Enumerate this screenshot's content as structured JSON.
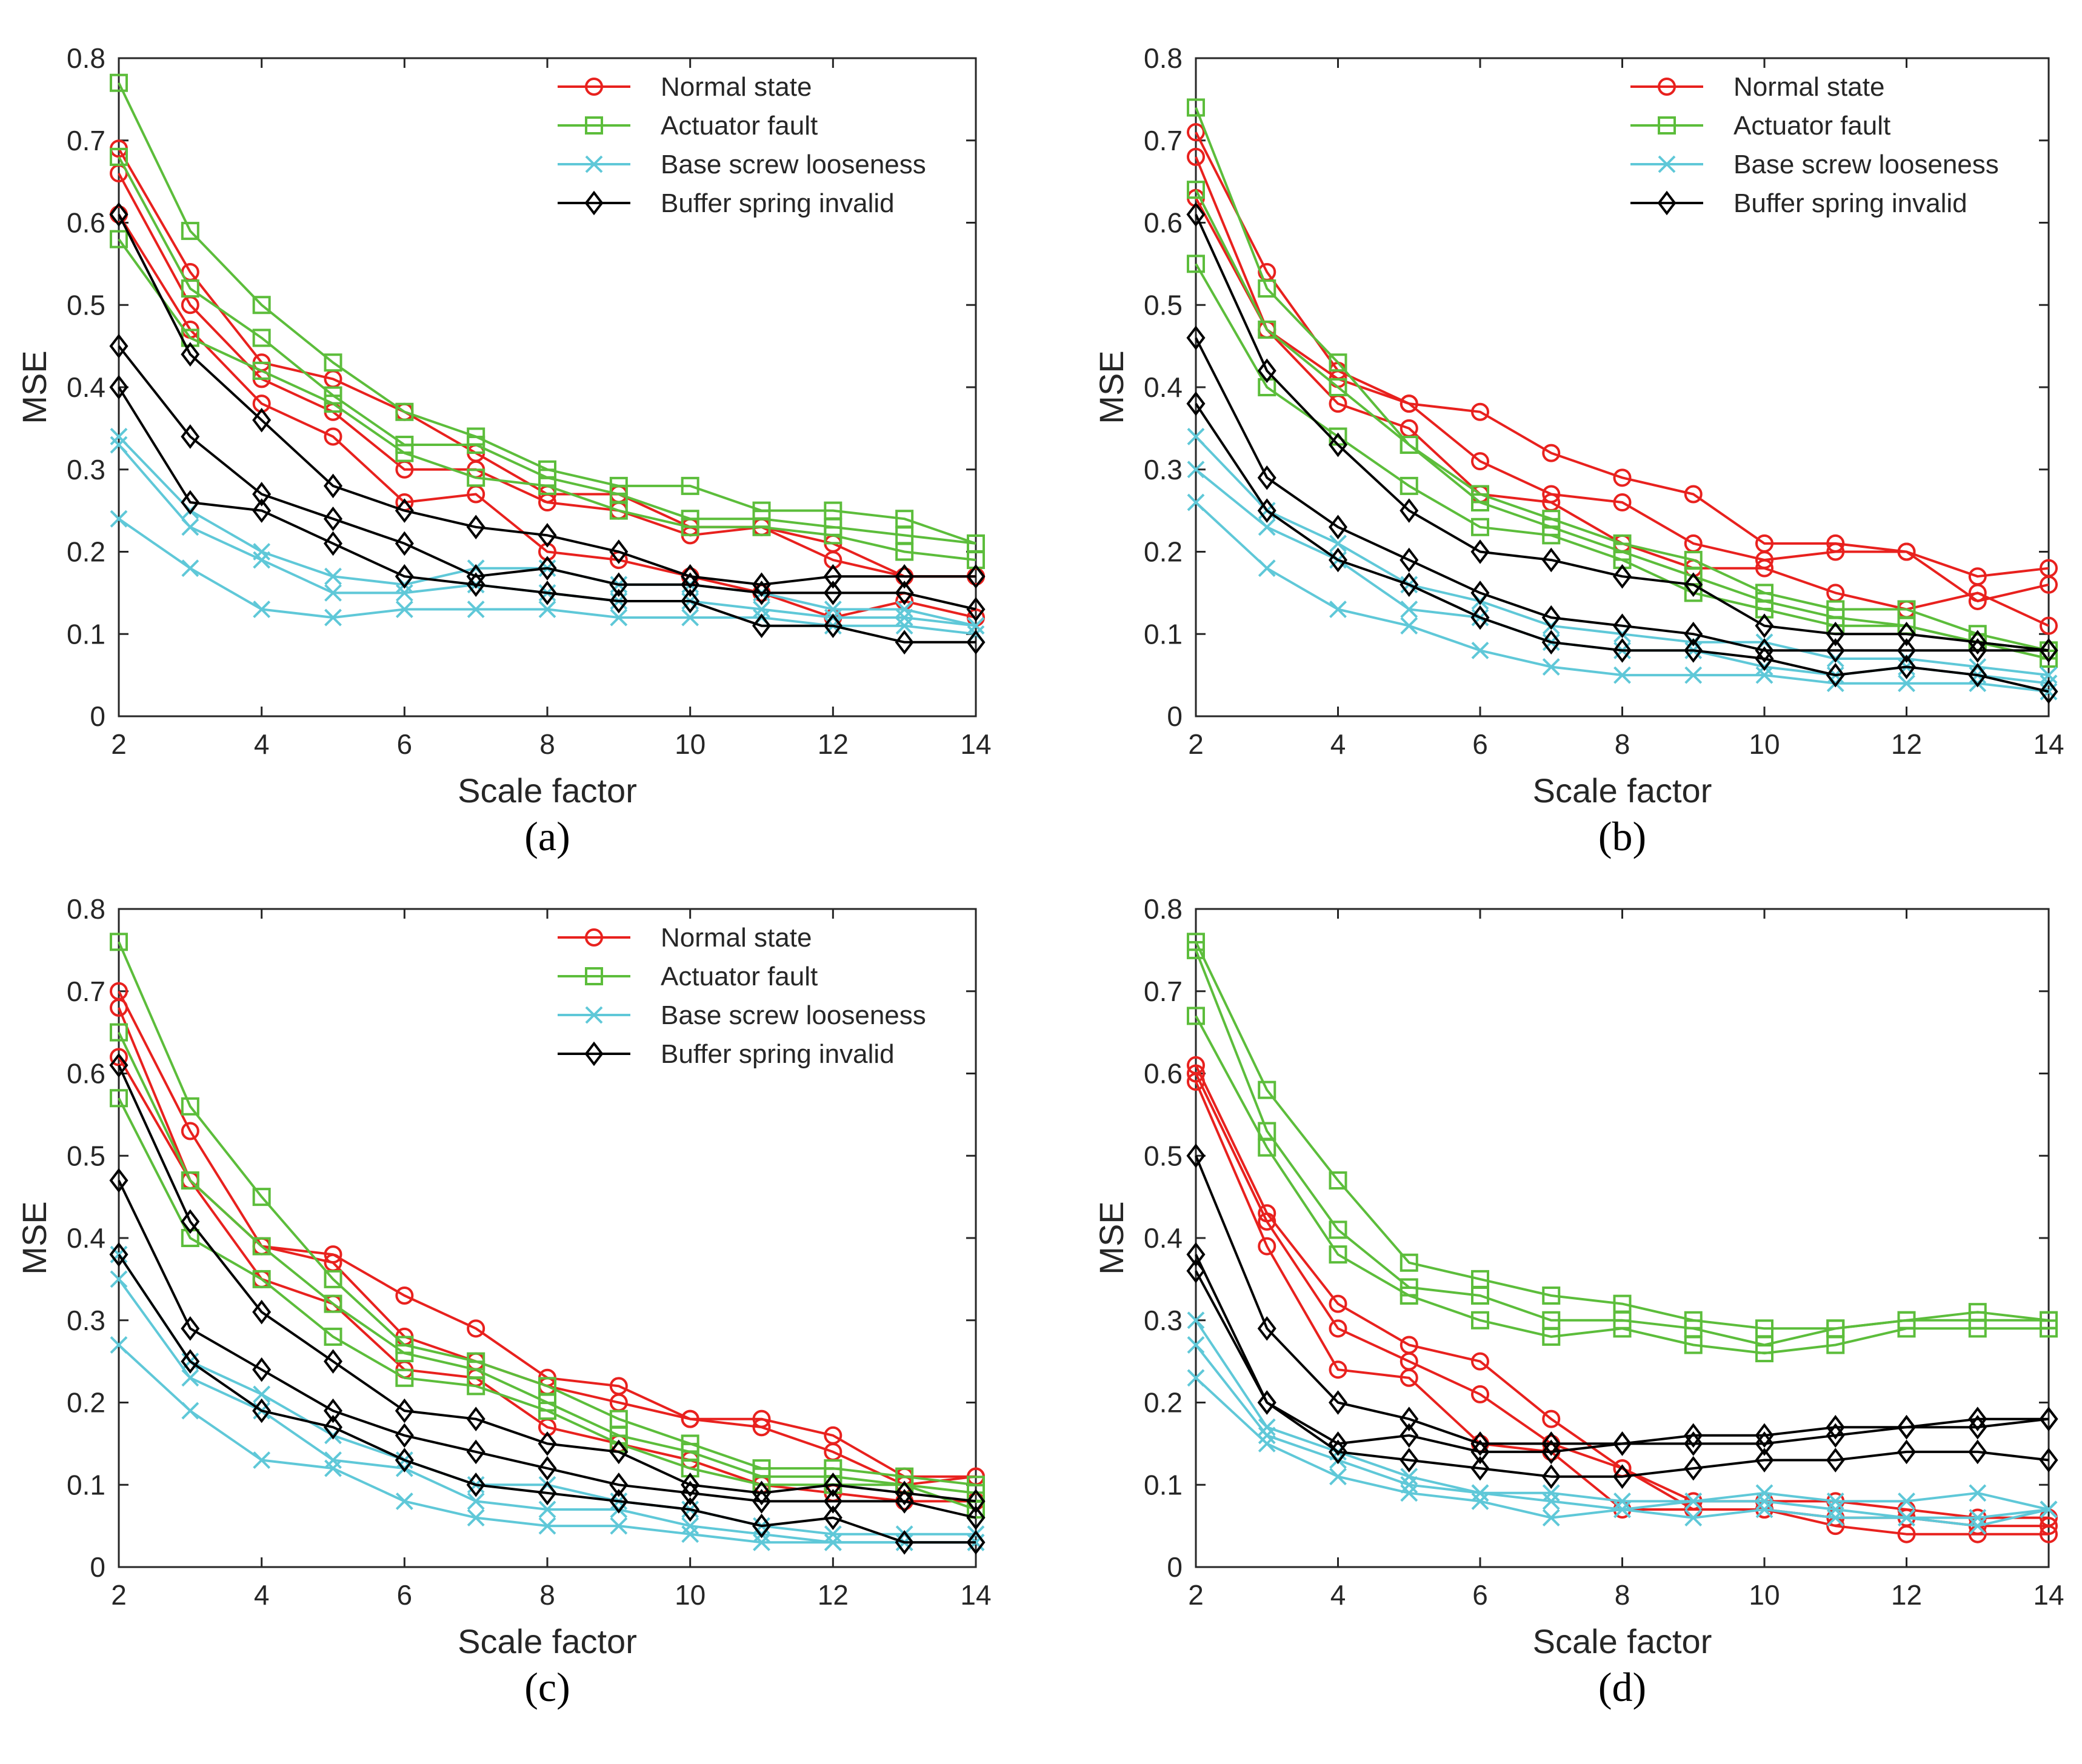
{
  "chart_data": [
    {
      "type": "line",
      "panel_label": "(a)",
      "panel_letter": "a",
      "xlabel": "Scale factor",
      "ylabel": "MSE",
      "xlim": [
        2,
        14
      ],
      "ylim": [
        0,
        0.8
      ],
      "xticks": [
        2,
        4,
        6,
        8,
        10,
        12,
        14
      ],
      "yticks": [
        0,
        0.1,
        0.2,
        0.3,
        0.4,
        0.5,
        0.6,
        0.7,
        0.8
      ],
      "ytick_labels": [
        "0",
        "0.1",
        "0.2",
        "0.3",
        "0.4",
        "0.5",
        "0.6",
        "0.7",
        "0.8"
      ],
      "x": [
        2,
        3,
        4,
        5,
        6,
        7,
        8,
        9,
        10,
        11,
        12,
        13,
        14
      ],
      "legend": {
        "position": "top-right",
        "entries": [
          "Normal state",
          "Actuator fault",
          "Base screw looseness",
          "Buffer spring invalid"
        ]
      },
      "series": [
        {
          "name": "Normal state",
          "lines": [
            [
              0.69,
              0.54,
              0.43,
              0.41,
              0.37,
              0.32,
              0.27,
              0.27,
              0.23,
              0.23,
              0.21,
              0.17,
              0.17
            ],
            [
              0.66,
              0.5,
              0.41,
              0.37,
              0.3,
              0.3,
              0.26,
              0.25,
              0.22,
              0.23,
              0.19,
              0.17,
              0.17
            ],
            [
              0.61,
              0.47,
              0.38,
              0.34,
              0.26,
              0.27,
              0.2,
              0.19,
              0.17,
              0.15,
              0.12,
              0.14,
              0.12
            ]
          ]
        },
        {
          "name": "Actuator fault",
          "lines": [
            [
              0.77,
              0.59,
              0.5,
              0.43,
              0.37,
              0.34,
              0.3,
              0.28,
              0.28,
              0.25,
              0.25,
              0.24,
              0.21
            ],
            [
              0.68,
              0.52,
              0.46,
              0.39,
              0.33,
              0.33,
              0.29,
              0.27,
              0.24,
              0.24,
              0.23,
              0.22,
              0.21
            ],
            [
              0.58,
              0.46,
              0.42,
              0.38,
              0.32,
              0.29,
              0.28,
              0.25,
              0.23,
              0.23,
              0.22,
              0.2,
              0.19
            ]
          ]
        },
        {
          "name": "Base screw looseness",
          "lines": [
            [
              0.34,
              0.25,
              0.2,
              0.17,
              0.16,
              0.18,
              0.18,
              0.16,
              0.16,
              0.15,
              0.13,
              0.13,
              0.11
            ],
            [
              0.33,
              0.23,
              0.19,
              0.15,
              0.15,
              0.16,
              0.15,
              0.14,
              0.14,
              0.13,
              0.12,
              0.12,
              0.11
            ],
            [
              0.24,
              0.18,
              0.13,
              0.12,
              0.13,
              0.13,
              0.13,
              0.12,
              0.12,
              0.12,
              0.11,
              0.11,
              0.1
            ]
          ]
        },
        {
          "name": "Buffer spring invalid",
          "lines": [
            [
              0.61,
              0.44,
              0.36,
              0.28,
              0.25,
              0.23,
              0.22,
              0.2,
              0.17,
              0.16,
              0.17,
              0.17,
              0.17
            ],
            [
              0.45,
              0.34,
              0.27,
              0.24,
              0.21,
              0.17,
              0.18,
              0.16,
              0.16,
              0.15,
              0.15,
              0.15,
              0.13
            ],
            [
              0.4,
              0.26,
              0.25,
              0.21,
              0.17,
              0.16,
              0.15,
              0.14,
              0.14,
              0.11,
              0.11,
              0.09,
              0.09
            ]
          ]
        }
      ]
    },
    {
      "type": "line",
      "panel_label": "(b)",
      "panel_letter": "b",
      "xlabel": "Scale factor",
      "ylabel": "MSE",
      "xlim": [
        2,
        14
      ],
      "ylim": [
        0,
        0.8
      ],
      "xticks": [
        2,
        4,
        6,
        8,
        10,
        12,
        14
      ],
      "yticks": [
        0,
        0.1,
        0.2,
        0.3,
        0.4,
        0.5,
        0.6,
        0.7,
        0.8
      ],
      "ytick_labels": [
        "0",
        "0.1",
        "0.2",
        "0.3",
        "0.4",
        "0.5",
        "0.6",
        "0.7",
        "0.8"
      ],
      "x": [
        2,
        3,
        4,
        5,
        6,
        7,
        8,
        9,
        10,
        11,
        12,
        13,
        14
      ],
      "legend": {
        "position": "top-right",
        "entries": [
          "Normal state",
          "Actuator fault",
          "Base screw looseness",
          "Buffer spring invalid"
        ]
      },
      "series": [
        {
          "name": "Normal state",
          "lines": [
            [
              0.71,
              0.54,
              0.42,
              0.38,
              0.37,
              0.32,
              0.29,
              0.27,
              0.21,
              0.21,
              0.2,
              0.17,
              0.18
            ],
            [
              0.68,
              0.47,
              0.41,
              0.38,
              0.31,
              0.27,
              0.26,
              0.21,
              0.19,
              0.2,
              0.2,
              0.14,
              0.16
            ],
            [
              0.63,
              0.47,
              0.38,
              0.35,
              0.27,
              0.26,
              0.21,
              0.18,
              0.18,
              0.15,
              0.13,
              0.15,
              0.11
            ]
          ]
        },
        {
          "name": "Actuator fault",
          "lines": [
            [
              0.74,
              0.52,
              0.43,
              0.33,
              0.27,
              0.24,
              0.21,
              0.19,
              0.15,
              0.13,
              0.13,
              0.1,
              0.08
            ],
            [
              0.64,
              0.47,
              0.4,
              0.33,
              0.26,
              0.23,
              0.2,
              0.17,
              0.14,
              0.12,
              0.11,
              0.09,
              0.08
            ],
            [
              0.55,
              0.4,
              0.34,
              0.28,
              0.23,
              0.22,
              0.19,
              0.15,
              0.13,
              0.11,
              0.11,
              0.09,
              0.07
            ]
          ]
        },
        {
          "name": "Base screw looseness",
          "lines": [
            [
              0.34,
              0.25,
              0.21,
              0.16,
              0.14,
              0.11,
              0.1,
              0.09,
              0.09,
              0.07,
              0.07,
              0.06,
              0.05
            ],
            [
              0.3,
              0.23,
              0.19,
              0.13,
              0.12,
              0.09,
              0.08,
              0.08,
              0.06,
              0.05,
              0.06,
              0.05,
              0.04
            ],
            [
              0.26,
              0.18,
              0.13,
              0.11,
              0.08,
              0.06,
              0.05,
              0.05,
              0.05,
              0.04,
              0.04,
              0.04,
              0.03
            ]
          ]
        },
        {
          "name": "Buffer spring invalid",
          "lines": [
            [
              0.61,
              0.42,
              0.33,
              0.25,
              0.2,
              0.19,
              0.17,
              0.16,
              0.11,
              0.1,
              0.1,
              0.09,
              0.08
            ],
            [
              0.46,
              0.29,
              0.23,
              0.19,
              0.15,
              0.12,
              0.11,
              0.1,
              0.08,
              0.08,
              0.08,
              0.08,
              0.08
            ],
            [
              0.38,
              0.25,
              0.19,
              0.16,
              0.12,
              0.09,
              0.08,
              0.08,
              0.07,
              0.05,
              0.06,
              0.05,
              0.03
            ]
          ]
        }
      ]
    },
    {
      "type": "line",
      "panel_label": "(c)",
      "panel_letter": "c",
      "xlabel": "Scale factor",
      "ylabel": "MSE",
      "xlim": [
        2,
        14
      ],
      "ylim": [
        0,
        0.8
      ],
      "xticks": [
        2,
        4,
        6,
        8,
        10,
        12,
        14
      ],
      "yticks": [
        0,
        0.1,
        0.2,
        0.3,
        0.4,
        0.5,
        0.6,
        0.7,
        0.8
      ],
      "ytick_labels": [
        "0",
        "0.1",
        "0.2",
        "0.3",
        "0.4",
        "0.5",
        "0.6",
        "0.7",
        "0.8"
      ],
      "x": [
        2,
        3,
        4,
        5,
        6,
        7,
        8,
        9,
        10,
        11,
        12,
        13,
        14
      ],
      "legend": {
        "position": "top-right",
        "entries": [
          "Normal state",
          "Actuator fault",
          "Base screw looseness",
          "Buffer spring invalid"
        ]
      },
      "series": [
        {
          "name": "Normal state",
          "lines": [
            [
              0.7,
              0.53,
              0.39,
              0.38,
              0.33,
              0.29,
              0.23,
              0.22,
              0.18,
              0.18,
              0.16,
              0.11,
              0.11
            ],
            [
              0.68,
              0.47,
              0.39,
              0.37,
              0.28,
              0.25,
              0.22,
              0.2,
              0.18,
              0.17,
              0.14,
              0.1,
              0.11
            ],
            [
              0.62,
              0.47,
              0.35,
              0.32,
              0.24,
              0.23,
              0.17,
              0.15,
              0.13,
              0.1,
              0.09,
              0.08,
              0.08
            ]
          ]
        },
        {
          "name": "Actuator fault",
          "lines": [
            [
              0.76,
              0.56,
              0.45,
              0.35,
              0.27,
              0.25,
              0.22,
              0.18,
              0.15,
              0.12,
              0.12,
              0.11,
              0.1
            ],
            [
              0.65,
              0.47,
              0.39,
              0.32,
              0.26,
              0.24,
              0.2,
              0.16,
              0.14,
              0.11,
              0.11,
              0.1,
              0.09
            ],
            [
              0.57,
              0.4,
              0.35,
              0.28,
              0.23,
              0.22,
              0.19,
              0.15,
              0.12,
              0.1,
              0.1,
              0.1,
              0.07
            ]
          ]
        },
        {
          "name": "Base screw looseness",
          "lines": [
            [
              0.38,
              0.25,
              0.21,
              0.16,
              0.13,
              0.1,
              0.1,
              0.08,
              0.07,
              0.05,
              0.04,
              0.04,
              0.04
            ],
            [
              0.35,
              0.23,
              0.19,
              0.13,
              0.12,
              0.08,
              0.07,
              0.07,
              0.05,
              0.04,
              0.03,
              0.03,
              0.03
            ],
            [
              0.27,
              0.19,
              0.13,
              0.12,
              0.08,
              0.06,
              0.05,
              0.05,
              0.04,
              0.03,
              0.03,
              0.03,
              0.03
            ]
          ]
        },
        {
          "name": "Buffer spring invalid",
          "lines": [
            [
              0.61,
              0.42,
              0.31,
              0.25,
              0.19,
              0.18,
              0.15,
              0.14,
              0.1,
              0.09,
              0.1,
              0.09,
              0.08
            ],
            [
              0.47,
              0.29,
              0.24,
              0.19,
              0.16,
              0.14,
              0.12,
              0.1,
              0.09,
              0.08,
              0.08,
              0.08,
              0.06
            ],
            [
              0.38,
              0.25,
              0.19,
              0.17,
              0.13,
              0.1,
              0.09,
              0.08,
              0.07,
              0.05,
              0.06,
              0.03,
              0.03
            ]
          ]
        }
      ]
    },
    {
      "type": "line",
      "panel_label": "(d)",
      "panel_letter": "d",
      "xlabel": "Scale factor",
      "ylabel": "MSE",
      "xlim": [
        2,
        14
      ],
      "ylim": [
        0,
        0.8
      ],
      "xticks": [
        2,
        4,
        6,
        8,
        10,
        12,
        14
      ],
      "yticks": [
        0,
        0.1,
        0.2,
        0.3,
        0.4,
        0.5,
        0.6,
        0.7,
        0.8
      ],
      "ytick_labels": [
        "0",
        "0.1",
        "0.2",
        "0.3",
        "0.4",
        "0.5",
        "0.6",
        "0.7",
        "0.8"
      ],
      "x": [
        2,
        3,
        4,
        5,
        6,
        7,
        8,
        9,
        10,
        11,
        12,
        13,
        14
      ],
      "legend": null,
      "series": [
        {
          "name": "Normal state",
          "lines": [
            [
              0.61,
              0.43,
              0.32,
              0.27,
              0.25,
              0.18,
              0.12,
              0.08,
              0.08,
              0.08,
              0.07,
              0.06,
              0.06
            ],
            [
              0.6,
              0.42,
              0.29,
              0.25,
              0.21,
              0.15,
              0.12,
              0.07,
              0.07,
              0.06,
              0.06,
              0.05,
              0.05
            ],
            [
              0.59,
              0.39,
              0.24,
              0.23,
              0.15,
              0.14,
              0.07,
              0.07,
              0.07,
              0.05,
              0.04,
              0.04,
              0.04
            ]
          ]
        },
        {
          "name": "Actuator fault",
          "lines": [
            [
              0.76,
              0.58,
              0.47,
              0.37,
              0.35,
              0.33,
              0.32,
              0.3,
              0.29,
              0.29,
              0.3,
              0.31,
              0.3
            ],
            [
              0.75,
              0.53,
              0.41,
              0.34,
              0.33,
              0.3,
              0.3,
              0.29,
              0.27,
              0.29,
              0.3,
              0.3,
              0.3
            ],
            [
              0.67,
              0.51,
              0.38,
              0.33,
              0.3,
              0.28,
              0.29,
              0.27,
              0.26,
              0.27,
              0.29,
              0.29,
              0.29
            ]
          ]
        },
        {
          "name": "Base screw looseness",
          "lines": [
            [
              0.3,
              0.17,
              0.14,
              0.11,
              0.09,
              0.09,
              0.08,
              0.08,
              0.09,
              0.08,
              0.08,
              0.09,
              0.07
            ],
            [
              0.27,
              0.16,
              0.13,
              0.1,
              0.09,
              0.08,
              0.07,
              0.08,
              0.08,
              0.07,
              0.06,
              0.06,
              0.07
            ],
            [
              0.23,
              0.15,
              0.11,
              0.09,
              0.08,
              0.06,
              0.07,
              0.06,
              0.07,
              0.06,
              0.06,
              0.05,
              0.07
            ]
          ]
        },
        {
          "name": "Buffer spring invalid",
          "lines": [
            [
              0.5,
              0.29,
              0.2,
              0.18,
              0.15,
              0.15,
              0.15,
              0.16,
              0.16,
              0.17,
              0.17,
              0.18,
              0.18
            ],
            [
              0.38,
              0.2,
              0.15,
              0.16,
              0.14,
              0.14,
              0.15,
              0.15,
              0.15,
              0.16,
              0.17,
              0.17,
              0.18
            ],
            [
              0.36,
              0.2,
              0.14,
              0.13,
              0.12,
              0.11,
              0.11,
              0.12,
              0.13,
              0.13,
              0.14,
              0.14,
              0.13
            ]
          ]
        }
      ]
    }
  ],
  "styles": {
    "series_colors": {
      "Normal state": "#e8211e",
      "Actuator fault": "#5cbd3b",
      "Base screw looseness": "#5fc8d8",
      "Buffer spring invalid": "#000000"
    },
    "series_markers": {
      "Normal state": "circle",
      "Actuator fault": "square",
      "Base screw looseness": "x",
      "Buffer spring invalid": "diamond"
    },
    "axis_color": "#262626"
  }
}
